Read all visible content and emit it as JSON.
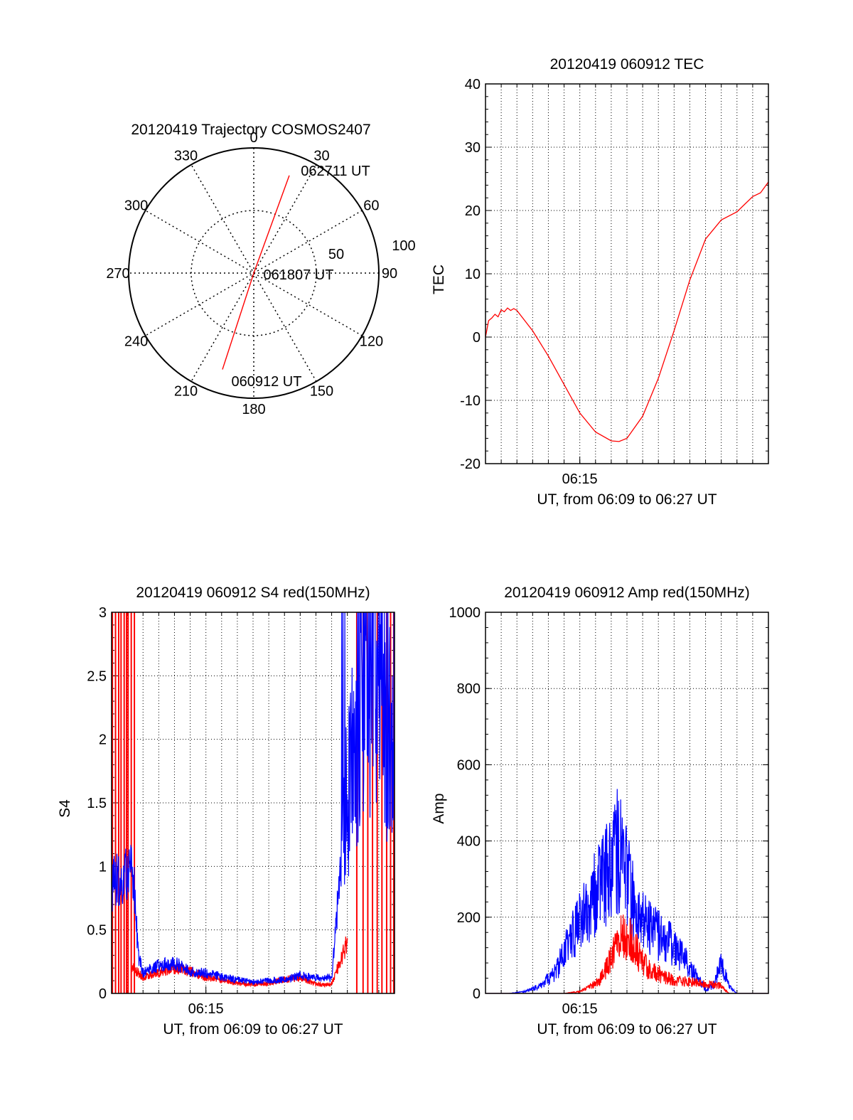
{
  "chart_data": [
    {
      "type": "polar",
      "title": "20120419 Trajectory COSMOS2407",
      "angle_ticks": [
        "0",
        "30",
        "60",
        "90",
        "120",
        "150",
        "180",
        "210",
        "240",
        "270",
        "300",
        "330"
      ],
      "radial_ticks": [
        "50",
        "100"
      ],
      "rlim": [
        0,
        100
      ],
      "grid": true,
      "series": [
        {
          "color": "#ff0000",
          "points": [
            {
              "az": 198,
              "zen": 81
            },
            {
              "az": 20,
              "zen": 0
            },
            {
              "az": 20,
              "zen": 83
            }
          ]
        }
      ],
      "annotations": [
        "060912 UT",
        "061807 UT",
        "062711 UT"
      ]
    },
    {
      "type": "line",
      "title": "20120419 060912 TEC",
      "xlabel": "UT, from 06:09 to 06:27 UT",
      "ylabel": "TEC",
      "x_tick_label": "06:15",
      "x_unit": "minutes after 06:09",
      "xlim": [
        0,
        18
      ],
      "ylim": [
        -20,
        40
      ],
      "y_ticks": [
        "-20",
        "-10",
        "0",
        "10",
        "20",
        "30",
        "40"
      ],
      "grid": true,
      "series": [
        {
          "color": "#ff0000",
          "x": [
            0,
            0.2,
            0.4,
            0.6,
            0.8,
            1.0,
            1.2,
            1.4,
            1.6,
            1.8,
            2.0,
            3,
            4,
            5,
            6,
            7,
            8,
            8.5,
            9,
            10,
            11,
            12,
            13,
            14,
            15,
            16,
            16.5,
            17,
            17.5,
            18
          ],
          "y": [
            0,
            2.6,
            3.0,
            3.6,
            3.2,
            4.3,
            4.0,
            4.6,
            4.2,
            4.5,
            4.2,
            1.0,
            -3.0,
            -7.5,
            -12.0,
            -15.0,
            -16.4,
            -16.5,
            -16.0,
            -12.5,
            -6.5,
            1.0,
            9.0,
            15.5,
            18.5,
            19.8,
            21.0,
            22.2,
            22.8,
            24.5
          ]
        }
      ]
    },
    {
      "type": "line",
      "title": "20120419 060912 S4 red(150MHz)",
      "xlabel": "UT, from 06:09 to 06:27 UT",
      "ylabel": "S4",
      "x_tick_label": "06:15",
      "x_unit": "minutes after 06:09",
      "xlim": [
        0,
        18
      ],
      "ylim": [
        0,
        3
      ],
      "y_ticks": [
        "0",
        "0.5",
        "1",
        "1.5",
        "2",
        "2.5",
        "3"
      ],
      "grid": true,
      "series": [
        {
          "color": "#ff0000",
          "x": [
            1.3,
            2,
            3,
            4,
            5,
            6,
            7,
            8,
            9,
            10,
            11,
            12,
            13,
            14,
            15
          ],
          "y": [
            0.2,
            0.13,
            0.16,
            0.2,
            0.17,
            0.13,
            0.11,
            0.08,
            0.07,
            0.08,
            0.11,
            0.13,
            0.07,
            0.07,
            0.4
          ]
        },
        {
          "color": "#0000ff",
          "x": [
            0,
            0.5,
            1.0,
            1.4,
            1.7,
            2,
            3,
            4,
            5,
            6,
            7,
            8,
            9,
            10,
            11,
            12,
            13,
            13.5,
            14,
            15,
            16,
            17,
            18
          ],
          "y": [
            0.85,
            0.9,
            0.92,
            0.95,
            0.3,
            0.16,
            0.22,
            0.24,
            0.17,
            0.16,
            0.13,
            0.11,
            0.09,
            0.1,
            0.11,
            0.14,
            0.12,
            0.12,
            0.12,
            1.6,
            2.4,
            2.5,
            1.8
          ]
        }
      ]
    },
    {
      "type": "line",
      "title": "20120419 060912 Amp red(150MHz)",
      "xlabel": "UT, from 06:09 to 06:27 UT",
      "ylabel": "Amp",
      "x_tick_label": "06:15",
      "x_unit": "minutes after 06:09",
      "xlim": [
        0,
        18
      ],
      "ylim": [
        0,
        1000
      ],
      "y_ticks": [
        "0",
        "200",
        "400",
        "600",
        "800",
        "1000"
      ],
      "grid": true,
      "series": [
        {
          "color": "#0000ff",
          "x": [
            0,
            1.5,
            2.5,
            3.5,
            4.5,
            5.5,
            6.5,
            7.5,
            8.5,
            9,
            9.5,
            10.5,
            11.5,
            12.5,
            13,
            13.5,
            14,
            14.5,
            15,
            15.5,
            16,
            18
          ],
          "y": [
            0,
            0,
            5,
            20,
            60,
            150,
            220,
            300,
            380,
            300,
            220,
            170,
            140,
            100,
            70,
            40,
            10,
            20,
            80,
            20,
            0,
            0
          ]
        },
        {
          "color": "#ff0000",
          "x": [
            0,
            5,
            6,
            7,
            7.5,
            8,
            8.5,
            9,
            9.5,
            10,
            10.5,
            11,
            12,
            13,
            14,
            15,
            15.5,
            18
          ],
          "y": [
            0,
            0,
            5,
            25,
            50,
            90,
            140,
            150,
            120,
            80,
            60,
            50,
            35,
            30,
            25,
            20,
            0,
            0
          ]
        }
      ]
    }
  ]
}
